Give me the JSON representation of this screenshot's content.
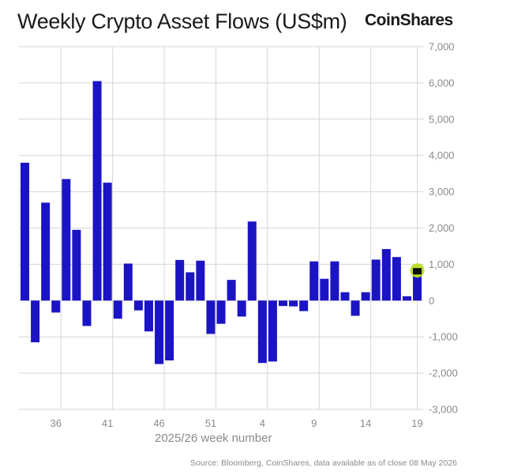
{
  "title": "Weekly Crypto Asset Flows (US$m)",
  "brand": "CoinShares",
  "source": "Source: Bloomberg, CoinShares, data available as of close 08 May 2026",
  "colors": {
    "bar": "#1b14c4",
    "highlight_bar": "#0d0d0d",
    "highlight_marker": "#b7de1f",
    "grid": "#d6d6d6"
  },
  "chart_data": {
    "type": "bar",
    "title": "Weekly Crypto Asset Flows (US$m)",
    "xlabel": "2025/26 week number",
    "ylabel": "",
    "ylim": [
      -3000,
      7000
    ],
    "yticks": [
      7000,
      6000,
      5000,
      4000,
      3000,
      2000,
      1000,
      0,
      -1000,
      -2000,
      -3000
    ],
    "ytick_labels": [
      "7,000",
      "6,000",
      "5,000",
      "4,000",
      "3,000",
      "2,000",
      "1,000",
      "0",
      "-1,000",
      "-2,000",
      "-3,000"
    ],
    "xtick_labels": [
      "36",
      "41",
      "46",
      "51",
      "4",
      "9",
      "14",
      "19"
    ],
    "grid": true,
    "categories": [
      "33",
      "34",
      "35",
      "36",
      "37",
      "38",
      "39",
      "40",
      "41",
      "42",
      "43",
      "44",
      "45",
      "46",
      "47",
      "48",
      "49",
      "50",
      "51",
      "52",
      "1",
      "2",
      "3",
      "4",
      "5",
      "6",
      "7",
      "8",
      "9",
      "10",
      "11",
      "12",
      "13",
      "14",
      "15",
      "16",
      "17",
      "18",
      "19"
    ],
    "values": [
      3800,
      -1150,
      2700,
      -330,
      3350,
      1950,
      -700,
      6050,
      3250,
      -500,
      1020,
      -270,
      -850,
      -1750,
      -1650,
      1120,
      780,
      1100,
      -920,
      -640,
      570,
      -440,
      2180,
      -1720,
      -1680,
      -150,
      -160,
      -290,
      1080,
      600,
      1080,
      230,
      -420,
      230,
      1130,
      1420,
      1200,
      120,
      830
    ],
    "highlight_last": true
  }
}
